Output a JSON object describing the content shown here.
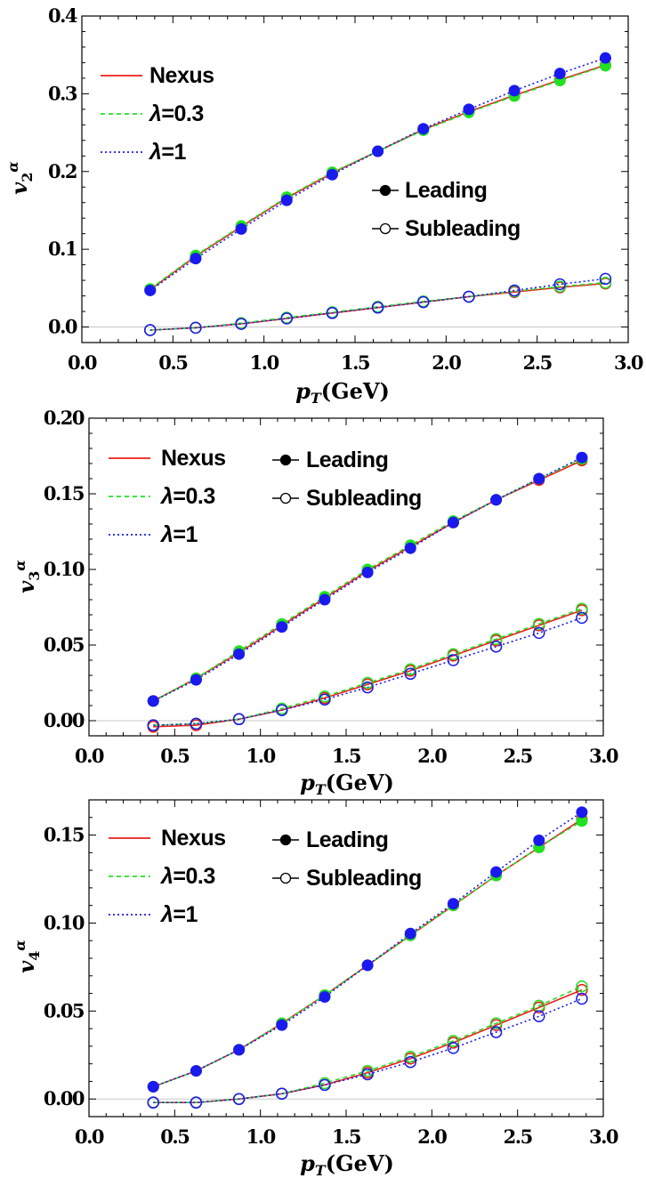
{
  "chart_data": [
    {
      "type": "line",
      "panel": "v2",
      "xlabel": "pT(GeV)",
      "ylabel": "v2α",
      "xlim": [
        0.0,
        3.0
      ],
      "ylim": [
        -0.02,
        0.4
      ],
      "xticks": [
        "0.0",
        "0.5",
        "1.0",
        "1.5",
        "2.0",
        "2.5",
        "3.0"
      ],
      "yticks": [
        "0.0",
        "0.1",
        "0.2",
        "0.3",
        "0.4"
      ],
      "ytick_values": [
        0.0,
        0.1,
        0.2,
        0.3,
        0.4
      ],
      "model_legend": [
        {
          "label": "Nexus",
          "color": "#e8201a",
          "style": "solid"
        },
        {
          "label": "λ=0.3",
          "color": "#22e022",
          "style": "dashed"
        },
        {
          "label": "λ=1",
          "color": "#1a1aee",
          "style": "dotted"
        }
      ],
      "marker_legend": [
        {
          "label": "Leading",
          "marker": "filled"
        },
        {
          "label": "Subleading",
          "marker": "open"
        }
      ],
      "x": [
        0.375,
        0.625,
        0.875,
        1.125,
        1.375,
        1.625,
        1.875,
        2.125,
        2.375,
        2.625,
        2.875
      ],
      "series": [
        {
          "name": "Nexus",
          "order": "Leading",
          "values": [
            0.048,
            0.091,
            0.129,
            0.166,
            0.198,
            0.226,
            0.254,
            0.277,
            0.298,
            0.318,
            0.337
          ]
        },
        {
          "name": "λ=0.3",
          "order": "Leading",
          "values": [
            0.049,
            0.092,
            0.13,
            0.167,
            0.199,
            0.226,
            0.253,
            0.276,
            0.297,
            0.317,
            0.336
          ]
        },
        {
          "name": "λ=1",
          "order": "Leading",
          "values": [
            0.047,
            0.088,
            0.126,
            0.163,
            0.196,
            0.226,
            0.255,
            0.28,
            0.304,
            0.326,
            0.346
          ]
        },
        {
          "name": "Nexus",
          "order": "Subleading",
          "values": [
            -0.004,
            -0.001,
            0.004,
            0.011,
            0.018,
            0.025,
            0.032,
            0.039,
            0.045,
            0.051,
            0.056
          ]
        },
        {
          "name": "λ=0.3",
          "order": "Subleading",
          "values": [
            -0.004,
            -0.001,
            0.005,
            0.012,
            0.019,
            0.026,
            0.033,
            0.039,
            0.046,
            0.052,
            0.057
          ]
        },
        {
          "name": "λ=1",
          "order": "Subleading",
          "values": [
            -0.004,
            -0.001,
            0.004,
            0.011,
            0.018,
            0.025,
            0.032,
            0.039,
            0.047,
            0.055,
            0.062
          ]
        }
      ]
    },
    {
      "type": "line",
      "panel": "v3",
      "xlabel": "pT(GeV)",
      "ylabel": "v3α",
      "xlim": [
        0.0,
        3.0
      ],
      "ylim": [
        -0.01,
        0.2
      ],
      "xticks": [
        "0.0",
        "0.5",
        "1.0",
        "1.5",
        "2.0",
        "2.5",
        "3.0"
      ],
      "yticks": [
        "0.00",
        "0.05",
        "0.10",
        "0.15",
        "0.20"
      ],
      "ytick_values": [
        0.0,
        0.05,
        0.1,
        0.15,
        0.2
      ],
      "model_legend": [
        {
          "label": "Nexus",
          "color": "#e8201a",
          "style": "solid"
        },
        {
          "label": "λ=0.3",
          "color": "#22e022",
          "style": "dashed"
        },
        {
          "label": "λ=1",
          "color": "#1a1aee",
          "style": "dotted"
        }
      ],
      "marker_legend": [
        {
          "label": "Leading",
          "marker": "filled"
        },
        {
          "label": "Subleading",
          "marker": "open"
        }
      ],
      "x": [
        0.375,
        0.625,
        0.875,
        1.125,
        1.375,
        1.625,
        1.875,
        2.125,
        2.375,
        2.625,
        2.875
      ],
      "series": [
        {
          "name": "Nexus",
          "order": "Leading",
          "values": [
            0.013,
            0.028,
            0.045,
            0.063,
            0.081,
            0.099,
            0.115,
            0.131,
            0.146,
            0.159,
            0.172
          ]
        },
        {
          "name": "λ=0.3",
          "order": "Leading",
          "values": [
            0.013,
            0.028,
            0.046,
            0.064,
            0.082,
            0.1,
            0.116,
            0.132,
            0.146,
            0.16,
            0.173
          ]
        },
        {
          "name": "λ=1",
          "order": "Leading",
          "values": [
            0.013,
            0.027,
            0.044,
            0.062,
            0.08,
            0.098,
            0.114,
            0.131,
            0.146,
            0.16,
            0.174
          ]
        },
        {
          "name": "Nexus",
          "order": "Subleading",
          "values": [
            -0.004,
            -0.003,
            0.001,
            0.007,
            0.015,
            0.024,
            0.033,
            0.043,
            0.053,
            0.063,
            0.073
          ]
        },
        {
          "name": "λ=0.3",
          "order": "Subleading",
          "values": [
            -0.003,
            -0.002,
            0.001,
            0.008,
            0.016,
            0.025,
            0.034,
            0.044,
            0.054,
            0.064,
            0.074
          ]
        },
        {
          "name": "λ=1",
          "order": "Subleading",
          "values": [
            -0.003,
            -0.002,
            0.001,
            0.007,
            0.014,
            0.022,
            0.031,
            0.04,
            0.049,
            0.058,
            0.068
          ]
        }
      ]
    },
    {
      "type": "line",
      "panel": "v4",
      "xlabel": "pT(GeV)",
      "ylabel": "v4α",
      "xlim": [
        0.0,
        3.0
      ],
      "ylim": [
        -0.01,
        0.17
      ],
      "xticks": [
        "0.0",
        "0.5",
        "1.0",
        "1.5",
        "2.0",
        "2.5",
        "3.0"
      ],
      "yticks": [
        "0.00",
        "0.05",
        "0.10",
        "0.15"
      ],
      "ytick_values": [
        0.0,
        0.05,
        0.1,
        0.15
      ],
      "model_legend": [
        {
          "label": "Nexus",
          "color": "#e8201a",
          "style": "solid"
        },
        {
          "label": "λ=0.3",
          "color": "#22e022",
          "style": "dashed"
        },
        {
          "label": "λ=1",
          "color": "#1a1aee",
          "style": "dotted"
        }
      ],
      "marker_legend": [
        {
          "label": "Leading",
          "marker": "filled"
        },
        {
          "label": "Subleading",
          "marker": "open"
        }
      ],
      "x": [
        0.375,
        0.625,
        0.875,
        1.125,
        1.375,
        1.625,
        1.875,
        2.125,
        2.375,
        2.625,
        2.875
      ],
      "series": [
        {
          "name": "Nexus",
          "order": "Leading",
          "values": [
            0.007,
            0.016,
            0.028,
            0.043,
            0.059,
            0.076,
            0.093,
            0.11,
            0.127,
            0.143,
            0.159
          ]
        },
        {
          "name": "λ=0.3",
          "order": "Leading",
          "values": [
            0.007,
            0.016,
            0.028,
            0.043,
            0.059,
            0.076,
            0.093,
            0.11,
            0.127,
            0.143,
            0.158
          ]
        },
        {
          "name": "λ=1",
          "order": "Leading",
          "values": [
            0.007,
            0.016,
            0.028,
            0.042,
            0.058,
            0.076,
            0.094,
            0.111,
            0.129,
            0.147,
            0.163
          ]
        },
        {
          "name": "Nexus",
          "order": "Subleading",
          "values": [
            -0.002,
            -0.002,
            0.0,
            0.003,
            0.008,
            0.015,
            0.023,
            0.032,
            0.042,
            0.052,
            0.062
          ]
        },
        {
          "name": "λ=0.3",
          "order": "Subleading",
          "values": [
            -0.002,
            -0.002,
            0.0,
            0.003,
            0.009,
            0.016,
            0.024,
            0.033,
            0.043,
            0.053,
            0.064
          ]
        },
        {
          "name": "λ=1",
          "order": "Subleading",
          "values": [
            -0.002,
            -0.002,
            0.0,
            0.003,
            0.008,
            0.014,
            0.021,
            0.029,
            0.038,
            0.047,
            0.057
          ]
        }
      ]
    }
  ]
}
